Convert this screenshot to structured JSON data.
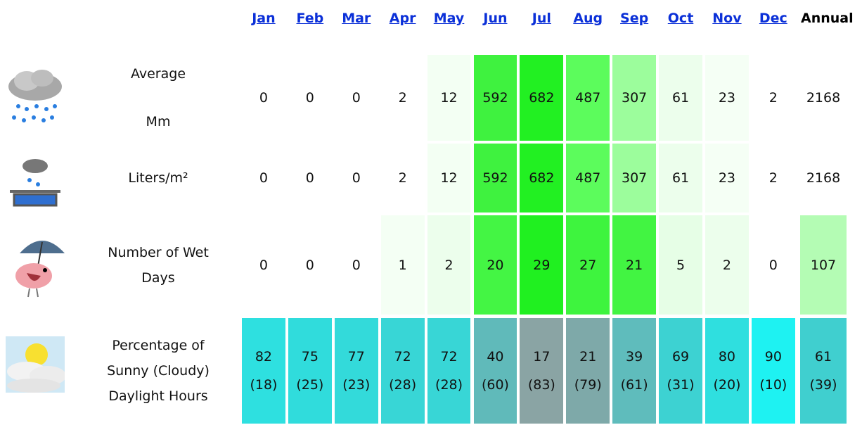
{
  "table": {
    "header": [
      "Jan",
      "Feb",
      "Mar",
      "Apr",
      "May",
      "Jun",
      "Jul",
      "Aug",
      "Sep",
      "Oct",
      "Nov",
      "Dec",
      "Annual"
    ],
    "rows": [
      {
        "icon": "rain",
        "label": [
          "Average",
          "Mm"
        ],
        "cells": [
          [
            "0"
          ],
          [
            "0"
          ],
          [
            "0"
          ],
          [
            "2"
          ],
          [
            "12"
          ],
          [
            "592"
          ],
          [
            "682"
          ],
          [
            "487"
          ],
          [
            "307"
          ],
          [
            "61"
          ],
          [
            "23"
          ],
          [
            "2"
          ],
          [
            "2168"
          ]
        ],
        "colors": [
          "#ffffff",
          "#ffffff",
          "#ffffff",
          "#ffffff",
          "#f3fff3",
          "#3ff23f",
          "#22f022",
          "#5cfc5c",
          "#9cfd9c",
          "#ecfeec",
          "#f5fff5",
          "#ffffff",
          "#ffffff"
        ]
      },
      {
        "icon": "bucket",
        "label": [
          "Liters/m²"
        ],
        "cells": [
          [
            "0"
          ],
          [
            "0"
          ],
          [
            "0"
          ],
          [
            "2"
          ],
          [
            "12"
          ],
          [
            "592"
          ],
          [
            "682"
          ],
          [
            "487"
          ],
          [
            "307"
          ],
          [
            "61"
          ],
          [
            "23"
          ],
          [
            "2"
          ],
          [
            "2168"
          ]
        ],
        "colors": [
          "#ffffff",
          "#ffffff",
          "#ffffff",
          "#ffffff",
          "#f3fff3",
          "#3ff23f",
          "#22f022",
          "#5cfc5c",
          "#9cfd9c",
          "#ecfeec",
          "#f5fff5",
          "#ffffff",
          "#ffffff"
        ]
      },
      {
        "icon": "bird",
        "label": [
          "Number of Wet",
          "Days"
        ],
        "cells": [
          [
            "0"
          ],
          [
            "0"
          ],
          [
            "0"
          ],
          [
            "1"
          ],
          [
            "2"
          ],
          [
            "20"
          ],
          [
            "29"
          ],
          [
            "27"
          ],
          [
            "21"
          ],
          [
            "5"
          ],
          [
            "2"
          ],
          [
            "0"
          ],
          [
            "107"
          ]
        ],
        "colors": [
          "#ffffff",
          "#ffffff",
          "#ffffff",
          "#f4fff4",
          "#ecfeec",
          "#44f544",
          "#20f020",
          "#3ef43e",
          "#42f442",
          "#e6fee6",
          "#ecfeec",
          "#ffffff",
          "#b4fcb4"
        ]
      },
      {
        "icon": "sun",
        "label": [
          "Percentage of",
          "Sunny (Cloudy)",
          "Daylight Hours"
        ],
        "cells": [
          [
            "82",
            "(18)"
          ],
          [
            "75",
            "(25)"
          ],
          [
            "77",
            "(23)"
          ],
          [
            "72",
            "(28)"
          ],
          [
            "72",
            "(28)"
          ],
          [
            "40",
            "(60)"
          ],
          [
            "17",
            "(83)"
          ],
          [
            "21",
            "(79)"
          ],
          [
            "39",
            "(61)"
          ],
          [
            "69",
            "(31)"
          ],
          [
            "80",
            "(20)"
          ],
          [
            "90",
            "(10)"
          ],
          [
            "61",
            "(39)"
          ]
        ],
        "colors": [
          "#2ee0e0",
          "#30dcdc",
          "#33dada",
          "#38d6d6",
          "#38d6d6",
          "#60baba",
          "#8aa4a4",
          "#7ea9a9",
          "#5fbcbc",
          "#3dd2d2",
          "#2fdfdf",
          "#1ef2f2",
          "#40cfcf"
        ]
      }
    ]
  }
}
